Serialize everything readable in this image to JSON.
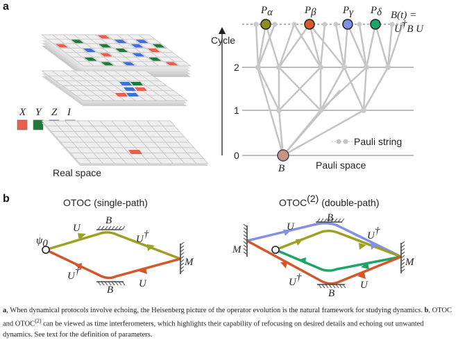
{
  "panel_a": {
    "label": "a",
    "legend": {
      "x": "X",
      "y": "Y",
      "z": "Z",
      "i": "I"
    },
    "real_space_label": "Real space",
    "cycle_axis_label": "Cycle",
    "cycle_ticks": [
      "0",
      "1",
      "2"
    ],
    "paulis": {
      "p": "P",
      "alpha": "α",
      "beta": "β",
      "gamma": "γ",
      "delta": "δ"
    },
    "bt_label": "B(t) =",
    "bt_eq_u": "U",
    "bt_eq_dag": "†",
    "bt_eq_rest": "B U",
    "pauli_string_label": "Pauli string",
    "root_label": "B",
    "pauli_space_label": "Pauli space",
    "colors": {
      "x": "#e8604c",
      "y": "#1e7a3a",
      "z": "#3f6fd8",
      "i": "#e8e8e8",
      "alpha": "#8a8f1f",
      "beta": "#d65a2a",
      "gamma": "#7e8fe6",
      "delta": "#1aa56a",
      "root": "#c8948a"
    }
  },
  "panel_b": {
    "label": "b",
    "left_title": "OTOC (single-path)",
    "right_title_main": "OTOC",
    "right_title_sup": "(2)",
    "right_title_rest": " (double-path)",
    "psi": "ψ",
    "psi_sub": "0",
    "u": "U",
    "udag": "U",
    "dag": "†",
    "b": "B",
    "m": "M",
    "colors": {
      "olive": "#9da024",
      "orange": "#d4562b",
      "blue": "#8390e8",
      "green": "#1ea565"
    }
  },
  "caption": {
    "a_label": "a",
    "a_text": ", When dynamical protocols involve echoing, the Heisenberg picture of the operator evolution is the natural framework for studying dynamics. ",
    "b_label": "b",
    "b_text_1": ", OTOC and OTOC",
    "b_sup": "(2)",
    "b_text_2": " can be viewed as time interferometers, which highlights their capability of refocusing on desired details and echoing out unwanted dynamics. See text for the definition of parameters."
  }
}
